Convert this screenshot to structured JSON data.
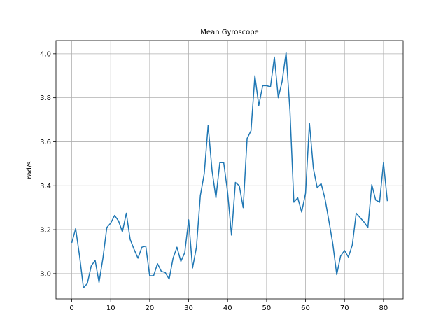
{
  "chart_data": {
    "type": "line",
    "title": "Mean Gyroscope",
    "xlabel": "",
    "ylabel": "rad/s",
    "xlim": [
      -4.05,
      85.05
    ],
    "ylim": [
      2.885,
      4.06
    ],
    "xticks": [
      0,
      10,
      20,
      30,
      40,
      50,
      60,
      70,
      80
    ],
    "yticks": [
      3.0,
      3.2,
      3.4,
      3.6,
      3.8,
      4.0
    ],
    "ytick_labels": [
      "3.0",
      "3.2",
      "3.4",
      "3.6",
      "3.8",
      "4.0"
    ],
    "grid": true,
    "line_color": "#1f77b4",
    "series": [
      {
        "x": [
          0,
          1,
          2,
          3,
          4,
          5,
          6,
          7,
          8,
          9,
          10,
          11,
          12,
          13,
          14,
          15,
          16,
          17,
          18,
          19,
          20,
          21,
          22,
          23,
          24,
          25,
          26,
          27,
          28,
          29,
          30,
          31,
          32,
          33,
          34,
          35,
          36,
          37,
          38,
          39,
          40,
          41,
          42,
          43,
          44,
          45,
          46,
          47,
          48,
          49,
          50,
          51,
          52,
          53,
          54,
          55,
          56,
          57,
          58,
          59,
          60,
          61,
          62,
          63,
          64,
          65,
          66,
          67,
          68,
          69,
          70,
          71,
          72,
          73,
          74,
          75,
          76,
          77,
          78,
          79,
          80,
          81
        ],
        "y": [
          3.14,
          3.205,
          3.08,
          2.935,
          2.955,
          3.035,
          3.06,
          2.96,
          3.07,
          3.21,
          3.23,
          3.265,
          3.24,
          3.19,
          3.275,
          3.155,
          3.11,
          3.07,
          3.12,
          3.125,
          2.99,
          2.99,
          3.045,
          3.01,
          3.005,
          2.975,
          3.07,
          3.12,
          3.055,
          3.095,
          3.245,
          3.025,
          3.12,
          3.355,
          3.455,
          3.675,
          3.47,
          3.345,
          3.505,
          3.505,
          3.37,
          3.175,
          3.415,
          3.4,
          3.3,
          3.615,
          3.65,
          3.9,
          3.765,
          3.855,
          3.855,
          3.85,
          3.985,
          3.8,
          3.875,
          4.005,
          3.74,
          3.325,
          3.345,
          3.28,
          3.365,
          3.685,
          3.48,
          3.39,
          3.41,
          3.34,
          3.24,
          3.135,
          2.995,
          3.08,
          3.105,
          3.075,
          3.13,
          3.275,
          3.255,
          3.235,
          3.21,
          3.405,
          3.335,
          3.325,
          3.505,
          3.33
        ]
      }
    ]
  }
}
